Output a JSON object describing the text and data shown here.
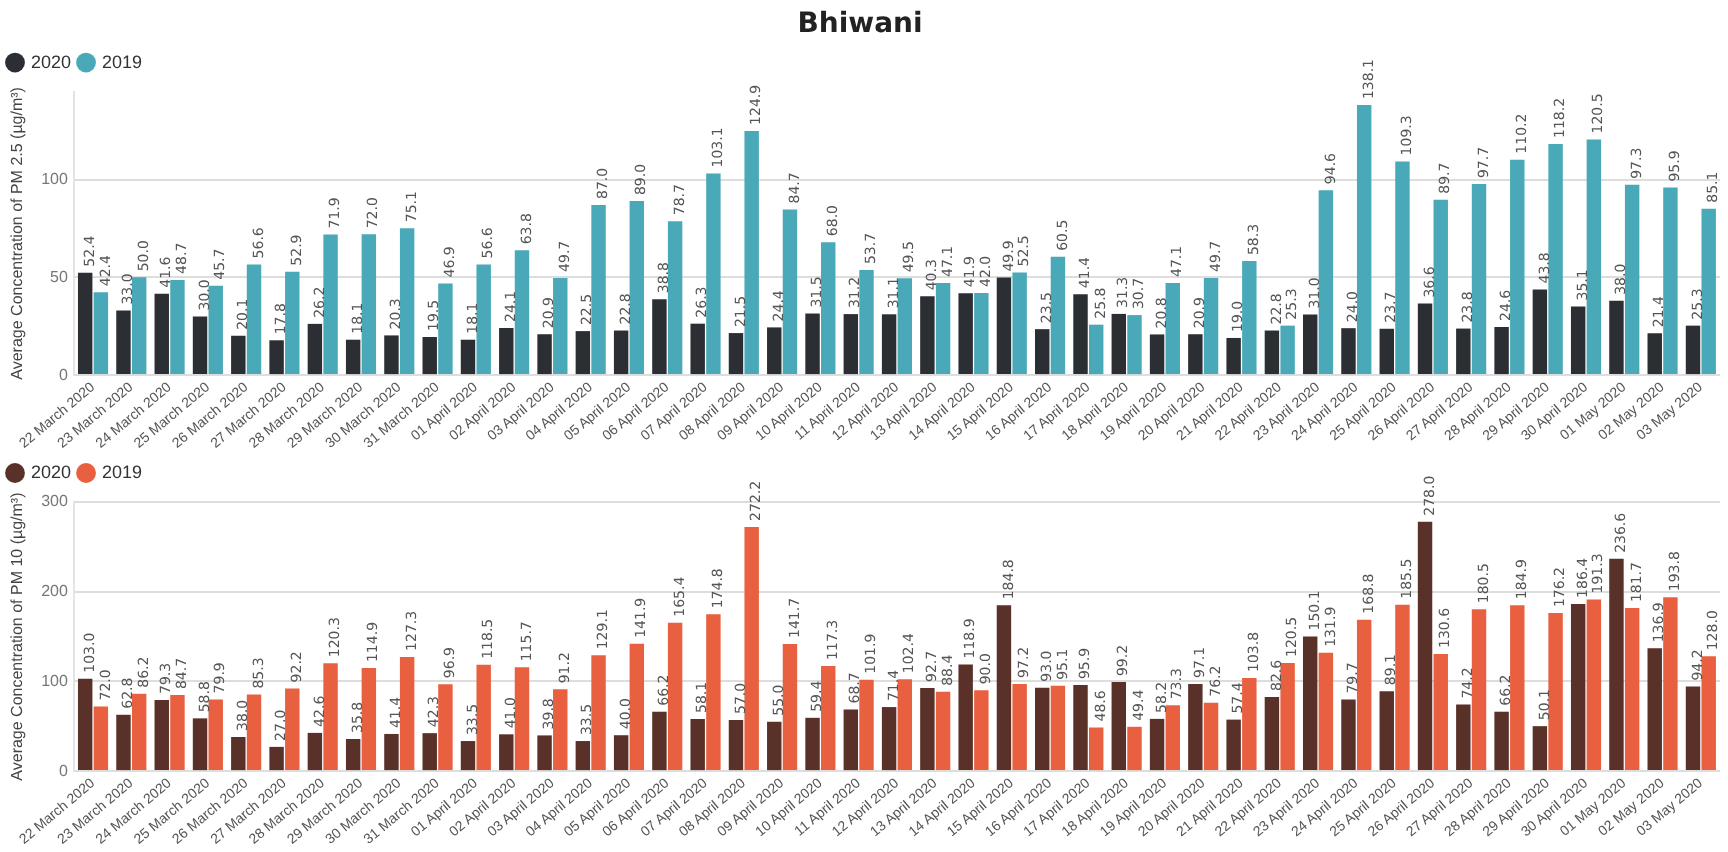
{
  "chart_data": [
    {
      "type": "bar",
      "title": "Bhiwani",
      "ylabel": "Average Concentration of PM 2.5 (µg/m³)",
      "categories": [
        "22 March 2020",
        "23 March 2020",
        "24 March 2020",
        "25 March 2020",
        "26 March 2020",
        "27 March 2020",
        "28 March 2020",
        "29 March 2020",
        "30 March 2020",
        "31 March 2020",
        "01 April 2020",
        "02 April 2020",
        "03 April 2020",
        "04 April 2020",
        "05 April 2020",
        "06 April 2020",
        "07 April 2020",
        "08 April 2020",
        "09 April 2020",
        "10 April 2020",
        "11 April 2020",
        "12 April 2020",
        "13 April 2020",
        "14 April 2020",
        "15 April 2020",
        "16 April 2020",
        "17 April 2020",
        "18 April 2020",
        "19 April 2020",
        "20 April 2020",
        "21 April 2020",
        "22 April 2020",
        "23 April 2020",
        "24 April 2020",
        "25 April 2020",
        "26 April 2020",
        "27 April 2020",
        "28 April 2020",
        "29 April 2020",
        "30 April 2020",
        "01 May 2020",
        "02 May 2020",
        "03 May 2020"
      ],
      "series": [
        {
          "name": "2020",
          "color": "#2b2f33",
          "values": [
            52.4,
            33.0,
            41.6,
            30.0,
            20.1,
            17.8,
            26.2,
            18.1,
            20.3,
            19.5,
            18.1,
            24.1,
            20.9,
            22.5,
            22.8,
            38.8,
            26.3,
            21.5,
            24.4,
            31.5,
            31.2,
            31.1,
            40.3,
            41.9,
            49.9,
            23.5,
            41.4,
            31.3,
            20.8,
            20.9,
            19.0,
            22.8,
            31.0,
            24.0,
            23.7,
            36.6,
            23.8,
            24.6,
            43.8,
            35.1,
            38.0,
            21.4,
            25.3
          ],
          "value_labels": [
            "52.4",
            "33.0",
            "41.6",
            "30.0",
            "20.1",
            "17.8",
            "26.2",
            "18.1",
            "20.3",
            "19.5",
            "18.1",
            "24.1",
            "20.9",
            "22.5",
            "22.8",
            "38.8",
            "26.3",
            "21.5",
            "24.4",
            "31.5",
            "31.2",
            "31.1",
            "40.3",
            "41.9",
            "49.9",
            "23.5",
            "41.4",
            "31.3",
            "20.8",
            "20.9",
            "19.0",
            "22.8",
            "31.0",
            "24.0",
            "23.7",
            "36.6",
            "23.8",
            "24.6",
            "43.8",
            "35.1",
            "38.0",
            "21.4",
            "25.3"
          ]
        },
        {
          "name": "2019",
          "color": "#4aa9b8",
          "values": [
            42.4,
            50.0,
            48.7,
            45.7,
            56.6,
            52.9,
            71.9,
            72.0,
            75.1,
            46.9,
            56.6,
            63.8,
            49.7,
            87.0,
            89.0,
            78.7,
            103.1,
            124.9,
            84.7,
            68.0,
            53.7,
            49.5,
            47.1,
            42.0,
            52.5,
            60.5,
            25.8,
            30.7,
            47.1,
            49.7,
            58.3,
            25.3,
            94.6,
            138.1,
            109.3,
            89.7,
            97.7,
            110.2,
            118.2,
            120.5,
            97.3,
            95.9,
            85.1
          ],
          "value_labels": [
            "42.4",
            "50.0",
            "48.7",
            "45.7",
            "56.6",
            "52.9",
            "71.9",
            "72.0",
            "75.1",
            "46.9",
            "56.6",
            "63.8",
            "49.7",
            "87.0",
            "89.0",
            "78.7",
            "103.1",
            "124.9",
            "84.7",
            "68.0",
            "53.7",
            "49.5",
            "47.1",
            "42.0",
            "52.5",
            "60.5",
            "25.8",
            "30.7",
            "47.1",
            "49.7",
            "58.3",
            "25.3",
            "94.6",
            "138.1",
            "109.3",
            "89.7",
            "97.7",
            "110.2",
            "118.2",
            "120.5",
            "97.3",
            "95.9",
            "85.1"
          ]
        }
      ],
      "ylim": [
        0,
        145
      ],
      "yticks": [
        0,
        50,
        100
      ],
      "grid": "y",
      "legend": "top left",
      "marker": "circle"
    },
    {
      "type": "bar",
      "ylabel": "Average Concentration of PM 10 (µg/m³)",
      "categories": [
        "22 March 2020",
        "23 March 2020",
        "24 March 2020",
        "25 March 2020",
        "26 March 2020",
        "27 March 2020",
        "28 March 2020",
        "29 March 2020",
        "30 March 2020",
        "31 March 2020",
        "01 April 2020",
        "02 April 2020",
        "03 April 2020",
        "04 April 2020",
        "05 April 2020",
        "06 April 2020",
        "07 April 2020",
        "08 April 2020",
        "09 April 2020",
        "10 April 2020",
        "11 April 2020",
        "12 April 2020",
        "13 April 2020",
        "14 April 2020",
        "15 April 2020",
        "16 April 2020",
        "17 April 2020",
        "18 April 2020",
        "19 April 2020",
        "20 April 2020",
        "21 April 2020",
        "22 April 2020",
        "23 April 2020",
        "24 April 2020",
        "25 April 2020",
        "26 April 2020",
        "27 April 2020",
        "28 April 2020",
        "29 April 2020",
        "30 April 2020",
        "01 May 2020",
        "02 May 2020",
        "03 May 2020"
      ],
      "series": [
        {
          "name": "2020",
          "color": "#5a3128",
          "values": [
            103.0,
            62.8,
            79.3,
            58.8,
            38.0,
            27.0,
            42.6,
            35.8,
            41.4,
            42.3,
            33.5,
            41.0,
            39.8,
            33.5,
            40.0,
            66.2,
            58.1,
            57.0,
            55.0,
            59.4,
            68.7,
            71.4,
            92.7,
            118.9,
            184.8,
            93.0,
            95.9,
            99.2,
            58.2,
            97.1,
            57.4,
            82.6,
            150.1,
            79.7,
            89.1,
            278.0,
            74.2,
            66.2,
            50.1,
            186.4,
            236.6,
            136.9,
            94.2
          ],
          "value_labels": [
            "103.0",
            "62.8",
            "79.3",
            "58.8",
            "38.0",
            "27.0",
            "42.6",
            "35.8",
            "41.4",
            "42.3",
            "33.5",
            "41.0",
            "39.8",
            "33.5",
            "40.0",
            "66.2",
            "58.1",
            "57.0",
            "55.0",
            "59.4",
            "68.7",
            "71.4",
            "92.7",
            "118.9",
            "184.8",
            "93.0",
            "95.9",
            "99.2",
            "58.2",
            "97.1",
            "57.4",
            "82.6",
            "150.1",
            "79.7",
            "89.1",
            "278.0",
            "74.2",
            "66.2",
            "50.1",
            "186.4",
            "236.6",
            "136.9",
            "94.2"
          ]
        },
        {
          "name": "2019",
          "color": "#e8603f",
          "values": [
            72.0,
            86.2,
            84.7,
            79.9,
            85.3,
            92.2,
            120.3,
            114.9,
            127.3,
            96.9,
            118.5,
            115.7,
            91.2,
            129.1,
            141.9,
            165.4,
            174.8,
            272.2,
            141.7,
            117.3,
            101.9,
            102.4,
            88.4,
            90.0,
            97.2,
            95.1,
            48.6,
            49.4,
            73.3,
            76.2,
            103.8,
            120.5,
            131.9,
            168.8,
            185.5,
            130.6,
            180.5,
            184.9,
            176.2,
            191.3,
            181.7,
            193.8,
            128.0
          ],
          "value_labels": [
            "72.0",
            "86.2",
            "84.7",
            "79.9",
            "85.3",
            "92.2",
            "120.3",
            "114.9",
            "127.3",
            "96.9",
            "118.5",
            "115.7",
            "91.2",
            "129.1",
            "141.9",
            "165.4",
            "174.8",
            "272.2",
            "141.7",
            "117.3",
            "101.9",
            "102.4",
            "88.4",
            "90.0",
            "97.2",
            "95.1",
            "48.6",
            "49.4",
            "73.3",
            "76.2",
            "103.8",
            "120.5",
            "131.9",
            "168.8",
            "185.5",
            "130.6",
            "180.5",
            "184.9",
            "176.2",
            "191.3",
            "181.7",
            "193.8",
            "128.0"
          ]
        }
      ],
      "ylim": [
        0,
        300
      ],
      "yticks": [
        0,
        100,
        200,
        300
      ],
      "grid": "y",
      "legend": "top left",
      "marker": "circle"
    }
  ]
}
